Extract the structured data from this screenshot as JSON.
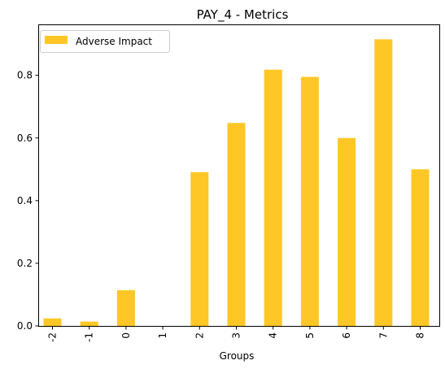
{
  "chart_data": {
    "type": "bar",
    "title": "PAY_4 - Metrics",
    "xlabel": "Groups",
    "ylabel": "",
    "categories": [
      "-2",
      "-1",
      "0",
      "1",
      "2",
      "3",
      "4",
      "5",
      "6",
      "7",
      "8"
    ],
    "series": [
      {
        "name": "Adverse Impact",
        "color": "#ffc726",
        "values": [
          0.024,
          0.014,
          0.114,
          0.0,
          0.491,
          0.648,
          0.818,
          0.795,
          0.6,
          0.915,
          0.5
        ]
      }
    ],
    "ylim": [
      0,
      0.96
    ],
    "yticks": [
      0.0,
      0.2,
      0.4,
      0.6,
      0.8
    ],
    "ytick_labels": [
      "0.0",
      "0.2",
      "0.4",
      "0.6",
      "0.8"
    ],
    "xtick_rotation": 90,
    "legend_position": "upper-left",
    "grid": false
  }
}
